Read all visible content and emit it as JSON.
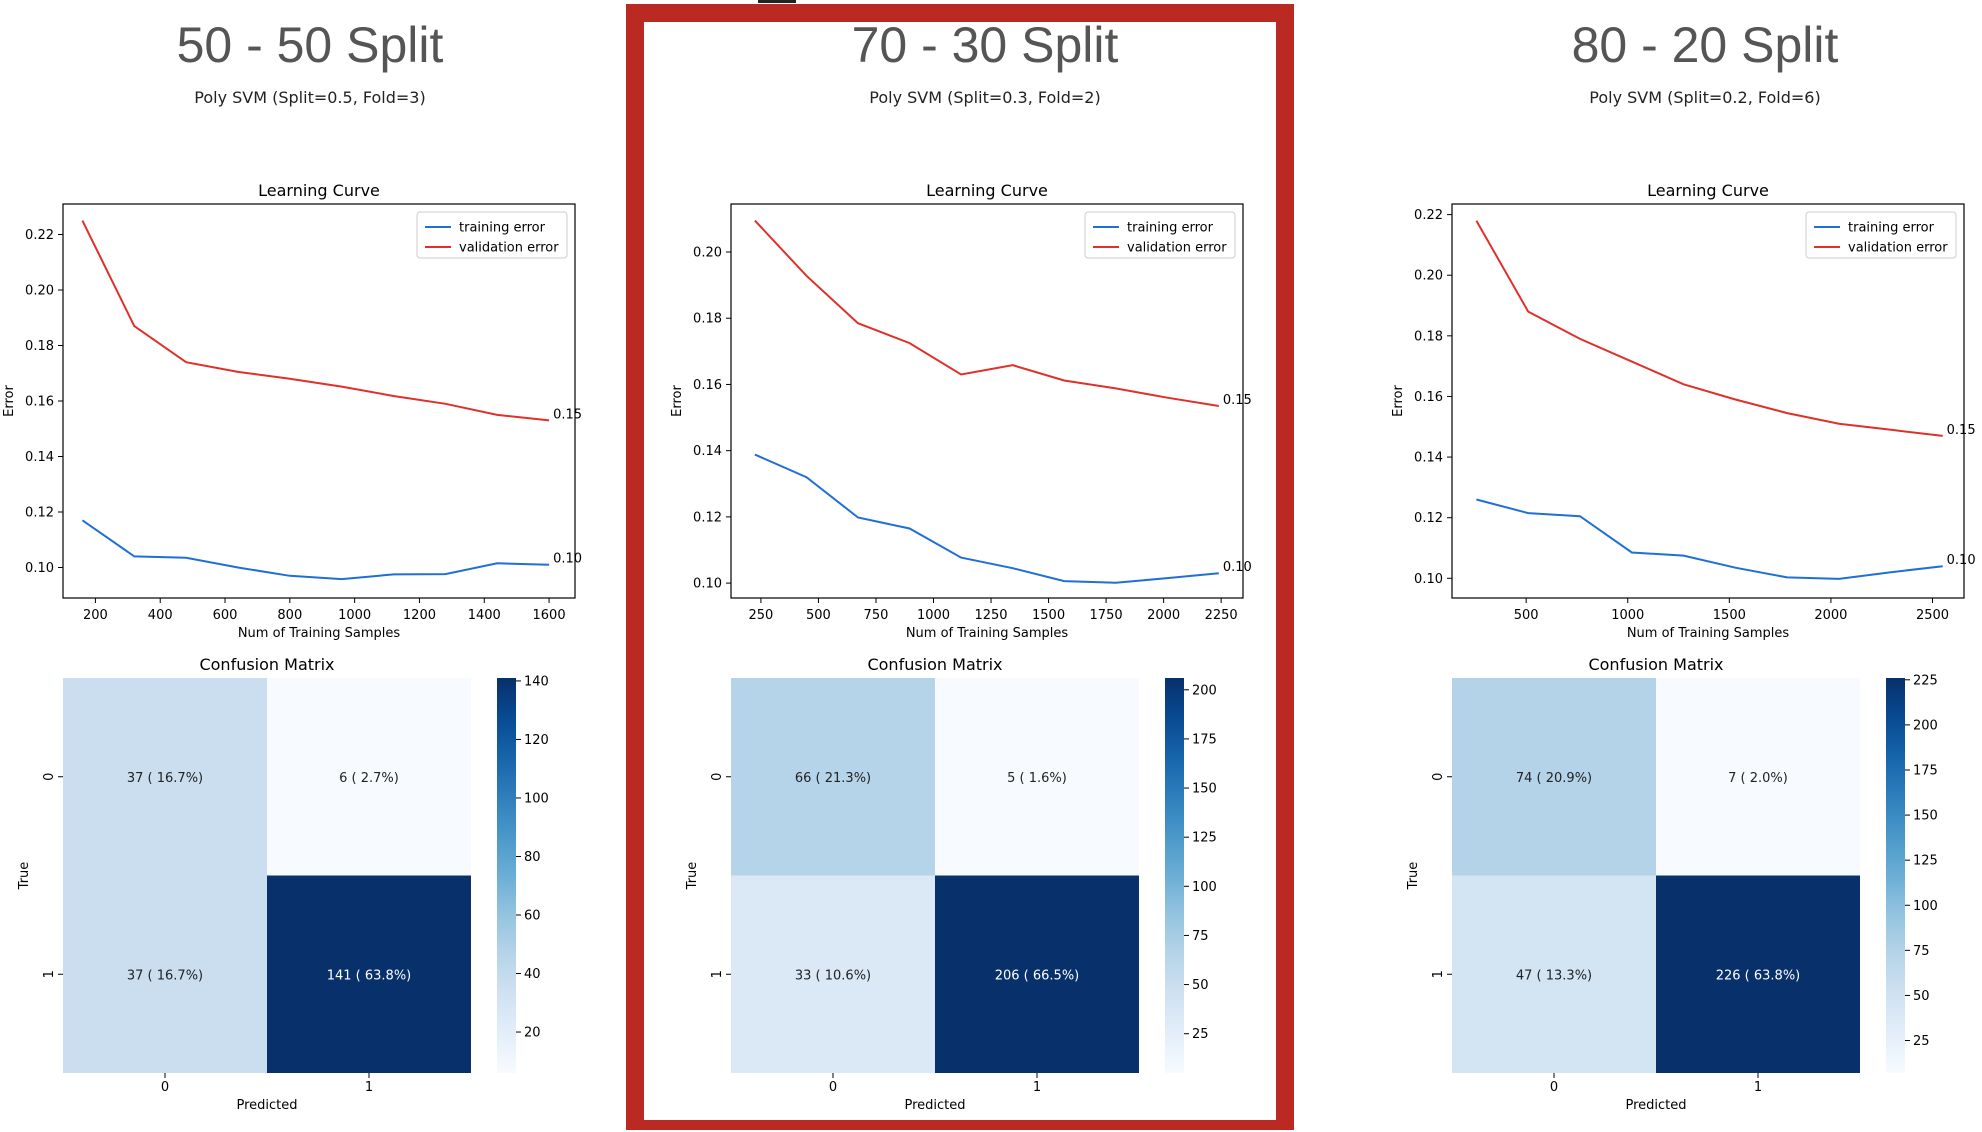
{
  "panels": [
    {
      "title": "50 - 50 Split",
      "subtitle": "Poly SVM (Split=0.5, Fold=3)",
      "highlighted": false
    },
    {
      "title": "70 - 30 Split",
      "subtitle": "Poly SVM (Split=0.3, Fold=2)",
      "highlighted": true
    },
    {
      "title": "80 - 20 Split",
      "subtitle": "Poly SVM (Split=0.2, Fold=6)",
      "highlighted": false
    }
  ],
  "colors": {
    "training": "#1f6fd6",
    "validation": "#e0302a",
    "highlight_frame": "#bb2a22",
    "cmap_low": "#f7fbff",
    "cmap_high": "#08306b"
  },
  "chart_data": [
    {
      "type": "line",
      "title": "Learning Curve",
      "xlabel": "Num of Training Samples",
      "ylabel": "Error",
      "xlim": [
        100,
        1680
      ],
      "ylim": [
        0.089,
        0.231
      ],
      "xticks": [
        200,
        400,
        600,
        800,
        1000,
        1200,
        1400,
        1600
      ],
      "yticks": [
        0.1,
        0.12,
        0.14,
        0.16,
        0.18,
        0.2,
        0.22
      ],
      "legend": "top-right",
      "x": [
        160,
        320,
        480,
        640,
        800,
        960,
        1120,
        1280,
        1440,
        1600
      ],
      "series": [
        {
          "name": "training error",
          "values": [
            0.117,
            0.104,
            0.1035,
            0.1,
            0.097,
            0.0958,
            0.0975,
            0.0976,
            0.1015,
            0.101
          ]
        },
        {
          "name": "validation error",
          "values": [
            0.225,
            0.187,
            0.174,
            0.1705,
            0.168,
            0.1652,
            0.1618,
            0.159,
            0.155,
            0.153
          ]
        }
      ],
      "annotations": [
        {
          "text": "0.15",
          "x": 1600,
          "y": 0.153
        },
        {
          "text": "0.10",
          "x": 1600,
          "y": 0.101
        }
      ]
    },
    {
      "type": "heatmap",
      "title": "Confusion Matrix",
      "xlabel": "Predicted",
      "ylabel": "True",
      "x_categories": [
        "0",
        "1"
      ],
      "y_categories": [
        "0",
        "1"
      ],
      "values": [
        [
          37,
          6
        ],
        [
          37,
          141
        ]
      ],
      "cell_labels": [
        [
          "37 ( 16.7%)",
          "6 ( 2.7%)"
        ],
        [
          "37 ( 16.7%)",
          "141 ( 63.8%)"
        ]
      ],
      "colorbar_range": [
        6,
        141
      ],
      "colorbar_ticks": [
        20,
        40,
        60,
        80,
        100,
        120,
        140
      ]
    },
    {
      "type": "line",
      "title": "Learning Curve",
      "xlabel": "Num of Training Samples",
      "ylabel": "Error",
      "xlim": [
        120,
        2345
      ],
      "ylim": [
        0.0955,
        0.2145
      ],
      "xticks": [
        250,
        500,
        750,
        1000,
        1250,
        1500,
        1750,
        2000,
        2250
      ],
      "yticks": [
        0.1,
        0.12,
        0.14,
        0.16,
        0.18,
        0.2
      ],
      "legend": "top-right",
      "x": [
        224,
        448,
        672,
        896,
        1120,
        1344,
        1568,
        1792,
        2016,
        2240
      ],
      "series": [
        {
          "name": "training error",
          "values": [
            0.1388,
            0.132,
            0.1198,
            0.1165,
            0.1077,
            0.1045,
            0.1006,
            0.1001,
            0.1015,
            0.103
          ]
        },
        {
          "name": "validation error",
          "values": [
            0.2095,
            0.1928,
            0.1785,
            0.1725,
            0.163,
            0.1658,
            0.1612,
            0.1588,
            0.156,
            0.1535
          ]
        }
      ],
      "annotations": [
        {
          "text": "0.15",
          "x": 2240,
          "y": 0.1535
        },
        {
          "text": "0.10",
          "x": 2240,
          "y": 0.103
        }
      ]
    },
    {
      "type": "heatmap",
      "title": "Confusion Matrix",
      "xlabel": "Predicted",
      "ylabel": "True",
      "x_categories": [
        "0",
        "1"
      ],
      "y_categories": [
        "0",
        "1"
      ],
      "values": [
        [
          66,
          5
        ],
        [
          33,
          206
        ]
      ],
      "cell_labels": [
        [
          "66 ( 21.3%)",
          "5 ( 1.6%)"
        ],
        [
          "33 ( 10.6%)",
          "206 ( 66.5%)"
        ]
      ],
      "colorbar_range": [
        5,
        206
      ],
      "colorbar_ticks": [
        25,
        50,
        75,
        100,
        125,
        150,
        175,
        200
      ]
    },
    {
      "type": "line",
      "title": "Learning Curve",
      "xlabel": "Num of Training Samples",
      "ylabel": "Error",
      "xlim": [
        135,
        2655
      ],
      "ylim": [
        0.0935,
        0.2235
      ],
      "xticks": [
        500,
        1000,
        1500,
        2000,
        2500
      ],
      "yticks": [
        0.1,
        0.12,
        0.14,
        0.16,
        0.18,
        0.2,
        0.22
      ],
      "legend": "top-right",
      "x": [
        255,
        510,
        765,
        1020,
        1275,
        1530,
        1785,
        2040,
        2295,
        2550
      ],
      "series": [
        {
          "name": "training error",
          "values": [
            0.126,
            0.1215,
            0.1205,
            0.1085,
            0.1075,
            0.1035,
            0.1003,
            0.0998,
            0.102,
            0.104
          ]
        },
        {
          "name": "validation error",
          "values": [
            0.218,
            0.188,
            0.179,
            0.1715,
            0.164,
            0.159,
            0.1545,
            0.151,
            0.149,
            0.147
          ]
        }
      ],
      "annotations": [
        {
          "text": "0.15",
          "x": 2550,
          "y": 0.147
        },
        {
          "text": "0.10",
          "x": 2550,
          "y": 0.104
        }
      ]
    },
    {
      "type": "heatmap",
      "title": "Confusion Matrix",
      "xlabel": "Predicted",
      "ylabel": "True",
      "x_categories": [
        "0",
        "1"
      ],
      "y_categories": [
        "0",
        "1"
      ],
      "values": [
        [
          74,
          7
        ],
        [
          47,
          226
        ]
      ],
      "cell_labels": [
        [
          "74 ( 20.9%)",
          "7 ( 2.0%)"
        ],
        [
          "47 ( 13.3%)",
          "226 ( 63.8%)"
        ]
      ],
      "colorbar_range": [
        7,
        226
      ],
      "colorbar_ticks": [
        25,
        50,
        75,
        100,
        125,
        150,
        175,
        200,
        225
      ]
    }
  ]
}
